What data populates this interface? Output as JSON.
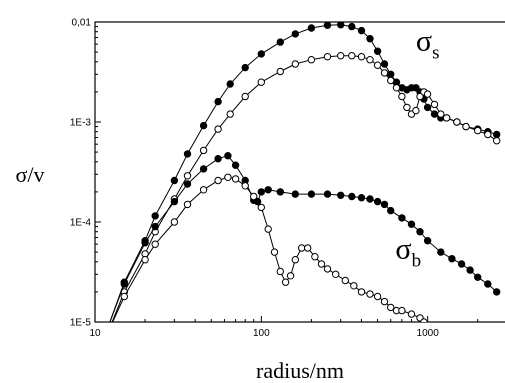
{
  "chart_data": {
    "type": "scatter",
    "title": "",
    "xlabel": "radius/nm",
    "ylabel": "σ/v",
    "xscale": "log",
    "yscale": "log",
    "xlim": [
      10,
      3000
    ],
    "ylim": [
      1e-05,
      0.01
    ],
    "x_ticks": [
      10,
      100,
      1000
    ],
    "x_tick_labels": [
      "10",
      "100",
      "1000"
    ],
    "y_ticks": [
      1e-05,
      0.0001,
      0.001,
      0.01
    ],
    "y_tick_labels": [
      "1E-5",
      "1E-4",
      "1E-3",
      "0,01"
    ],
    "grid": false,
    "annotations": [
      {
        "text": "σ",
        "subscript": "s",
        "x": 850,
        "y": 0.0052
      },
      {
        "text": "σ",
        "subscript": "b",
        "x": 640,
        "y": 4.3e-05
      }
    ],
    "series": [
      {
        "marker": "filled-circle",
        "x": [
          12,
          15,
          20,
          23,
          30,
          36,
          45,
          55,
          65,
          80,
          100,
          130,
          160,
          200,
          250,
          300,
          350,
          400,
          450,
          500,
          550,
          600,
          650,
          700,
          750,
          800,
          850,
          900,
          950,
          1000,
          1100,
          1200,
          1300,
          1500,
          1700,
          2000,
          2300,
          2600
        ],
        "y": [
          9e-06,
          2.5e-05,
          6.5e-05,
          0.000115,
          0.00026,
          0.00048,
          0.00092,
          0.0016,
          0.0024,
          0.0035,
          0.0048,
          0.0063,
          0.0076,
          0.0087,
          0.0093,
          0.0094,
          0.009,
          0.0082,
          0.0068,
          0.0051,
          0.0038,
          0.003,
          0.0025,
          0.0022,
          0.0021,
          0.0022,
          0.0022,
          0.002,
          0.0017,
          0.0014,
          0.0012,
          0.0011,
          0.0011,
          0.001,
          0.0009,
          0.00085,
          0.0008,
          0.00075
        ]
      },
      {
        "marker": "open-circle",
        "x": [
          12,
          15,
          20,
          23,
          30,
          36,
          45,
          55,
          65,
          80,
          100,
          130,
          160,
          200,
          250,
          300,
          350,
          400,
          450,
          500,
          550,
          600,
          650,
          700,
          750,
          800,
          850,
          900,
          950,
          1000,
          1100,
          1200,
          1300,
          1500,
          1700,
          2000,
          2300,
          2600
        ],
        "y": [
          8e-06,
          2e-05,
          4.8e-05,
          8e-05,
          0.00017,
          0.00029,
          0.00052,
          0.00085,
          0.0012,
          0.0018,
          0.0025,
          0.0032,
          0.0038,
          0.0042,
          0.0045,
          0.0046,
          0.0046,
          0.0045,
          0.0042,
          0.0037,
          0.0031,
          0.0026,
          0.0022,
          0.0018,
          0.0014,
          0.0012,
          0.0013,
          0.0018,
          0.002,
          0.0019,
          0.0015,
          0.0012,
          0.0011,
          0.001,
          0.0009,
          0.00082,
          0.00075,
          0.00065
        ]
      },
      {
        "marker": "filled-circle",
        "x": [
          12,
          15,
          20,
          23,
          30,
          36,
          45,
          55,
          63,
          70,
          80,
          90,
          95,
          100,
          110,
          130,
          160,
          200,
          250,
          300,
          350,
          400,
          450,
          500,
          550,
          600,
          700,
          800,
          900,
          1000,
          1200,
          1400,
          1600,
          1800,
          2000,
          2300,
          2600
        ],
        "y": [
          9e-06,
          2.4e-05,
          6.2e-05,
          9e-05,
          0.00016,
          0.00024,
          0.00034,
          0.00043,
          0.00046,
          0.00037,
          0.00026,
          0.000165,
          0.00016,
          0.0002,
          0.00021,
          0.0002,
          0.00019,
          0.00019,
          0.00019,
          0.000185,
          0.00018,
          0.000175,
          0.00017,
          0.00016,
          0.00015,
          0.00013,
          0.00011,
          9.5e-05,
          8e-05,
          6.5e-05,
          5e-05,
          4.3e-05,
          3.8e-05,
          3.3e-05,
          2.8e-05,
          2.4e-05,
          2e-05
        ]
      },
      {
        "marker": "open-circle",
        "x": [
          12,
          15,
          20,
          23,
          30,
          36,
          45,
          55,
          63,
          70,
          80,
          90,
          100,
          110,
          120,
          130,
          140,
          150,
          160,
          175,
          190,
          210,
          230,
          250,
          280,
          320,
          360,
          400,
          450,
          500,
          550,
          600,
          650,
          700,
          800,
          900,
          950
        ],
        "y": [
          8e-06,
          1.8e-05,
          4.2e-05,
          6e-05,
          0.0001,
          0.00015,
          0.00021,
          0.00026,
          0.00028,
          0.00027,
          0.00023,
          0.00018,
          0.00014,
          8.5e-05,
          5e-05,
          3.2e-05,
          2.5e-05,
          2.9e-05,
          4.2e-05,
          5.5e-05,
          5.5e-05,
          4.5e-05,
          3.8e-05,
          3.4e-05,
          3e-05,
          2.6e-05,
          2.3e-05,
          2e-05,
          1.9e-05,
          1.8e-05,
          1.6e-05,
          1.4e-05,
          1.3e-05,
          1.3e-05,
          1.2e-05,
          1.1e-05,
          1e-05
        ]
      }
    ]
  }
}
